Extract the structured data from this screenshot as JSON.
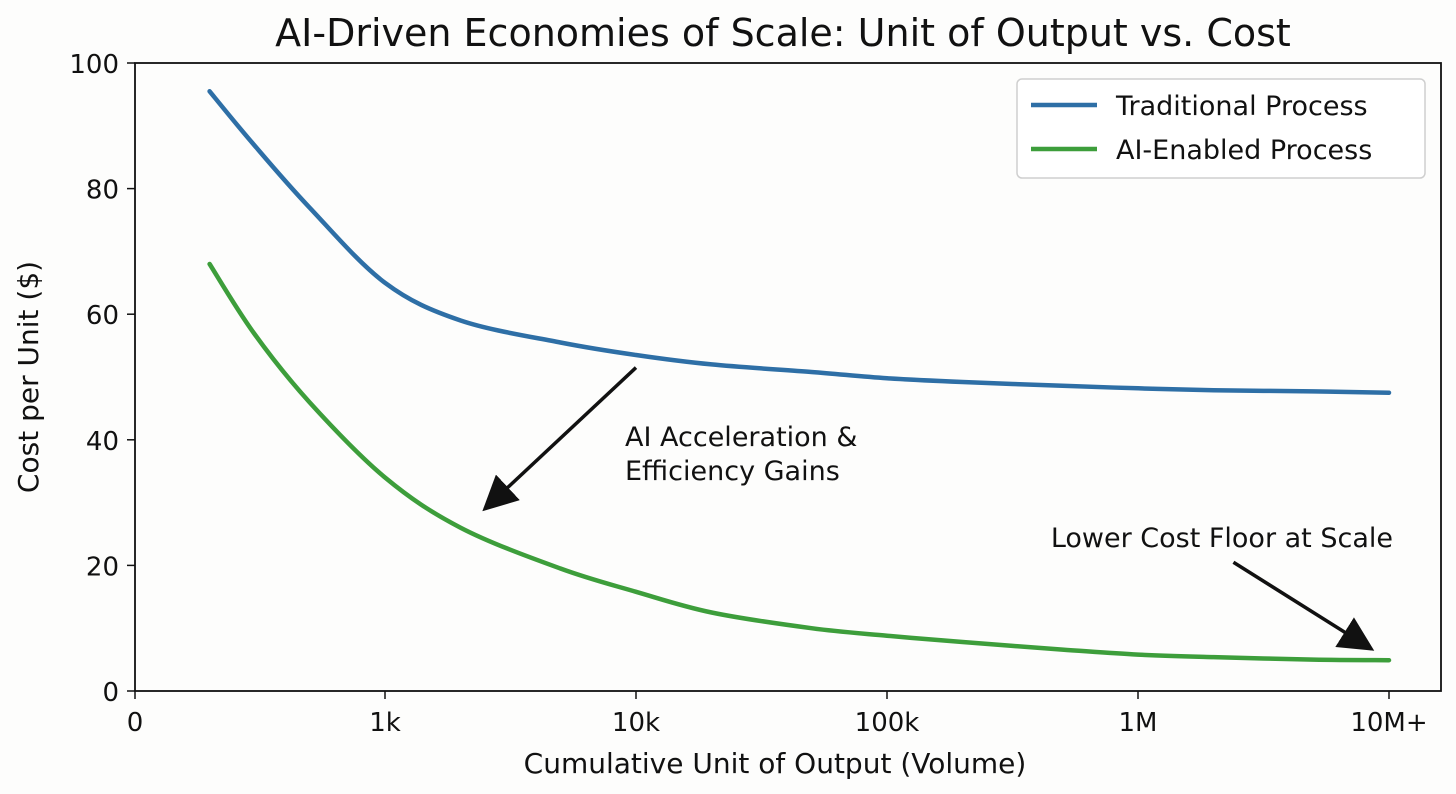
{
  "chart_data": {
    "type": "line",
    "title": "AI-Driven Economies of Scale: Unit of Output vs. Cost",
    "xlabel": "Cumulative Unit of Output (Volume)",
    "ylabel": "Cost per Unit ($)",
    "x_scale": "log",
    "x_tick_labels": [
      "0",
      "1k",
      "10k",
      "100k",
      "1M",
      "10M+"
    ],
    "y_ticks": [
      0,
      20,
      40,
      60,
      80,
      100
    ],
    "ylim": [
      0,
      100
    ],
    "grid": false,
    "legend_position": "top-right",
    "x": [
      200,
      300,
      500,
      1000,
      2000,
      5000,
      10000,
      20000,
      50000,
      100000,
      200000,
      500000,
      1000000,
      2000000,
      5000000,
      10000000
    ],
    "series": [
      {
        "name": "Traditional Process",
        "color": "#2e6fa6",
        "values": [
          95.5,
          87,
          77,
          65,
          59,
          55.5,
          53.5,
          52,
          50.8,
          49.8,
          49.2,
          48.6,
          48.2,
          47.9,
          47.7,
          47.5
        ]
      },
      {
        "name": "AI-Enabled Process",
        "color": "#3d9e3b",
        "values": [
          68,
          57,
          46,
          34,
          26,
          19.5,
          15.8,
          12.5,
          10,
          8.8,
          7.8,
          6.6,
          5.8,
          5.4,
          5.0,
          4.9
        ]
      }
    ],
    "annotations": [
      {
        "id": "ai-acceleration",
        "lines": [
          "AI Acceleration &",
          "Efficiency Gains"
        ],
        "arrow_from": [
          10000,
          51.5
        ],
        "arrow_to": [
          2500,
          29
        ]
      },
      {
        "id": "lower-cost-floor",
        "lines": [
          "Lower Cost Floor at Scale"
        ],
        "arrow_from": [
          2400000,
          20.5
        ],
        "arrow_to": [
          8500000,
          6.7
        ]
      }
    ]
  }
}
